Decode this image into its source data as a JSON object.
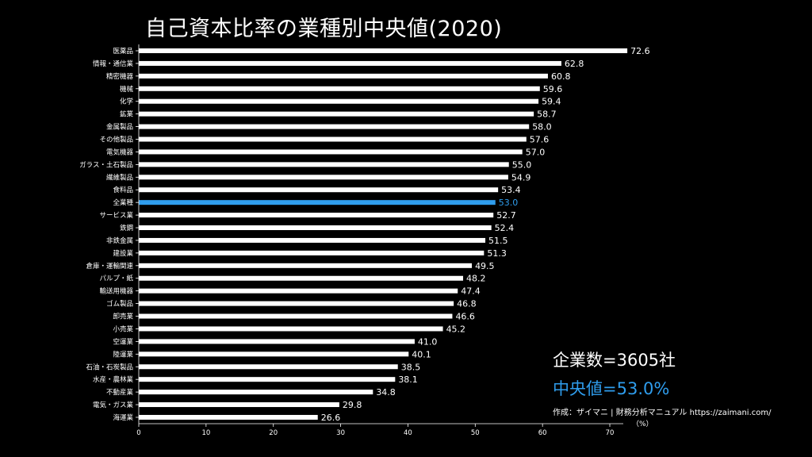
{
  "colors": {
    "background": "#000000",
    "bar": "#ffffff",
    "highlight": "#2f9ded"
  },
  "header": {
    "title": "自己資本比率の業種別中央値(2020)"
  },
  "stats": {
    "company_count": "企業数=3605社",
    "median": "中央値=53.0%"
  },
  "credit": "作成：ザイマニ | 財務分析マニュアル https://zaimani.com/",
  "unit_label": "（%）",
  "chart_data": {
    "type": "bar",
    "orientation": "horizontal",
    "title": "自己資本比率の業種別中央値(2020)",
    "xlim": [
      0,
      72
    ],
    "xticks": [
      0,
      10,
      20,
      30,
      40,
      50,
      60,
      70
    ],
    "highlight_category": "全業種",
    "categories": [
      "医薬品",
      "情報・通信業",
      "精密機器",
      "機械",
      "化学",
      "鉱業",
      "金属製品",
      "その他製品",
      "電気機器",
      "ガラス・土石製品",
      "繊維製品",
      "食料品",
      "全業種",
      "サービス業",
      "鉄鋼",
      "非鉄金属",
      "建設業",
      "倉庫・運輸関連",
      "パルプ・紙",
      "輸送用機器",
      "ゴム製品",
      "卸売業",
      "小売業",
      "空運業",
      "陸運業",
      "石油・石炭製品",
      "水産・農林業",
      "不動産業",
      "電気・ガス業",
      "海運業"
    ],
    "values": [
      72.6,
      62.8,
      60.8,
      59.6,
      59.4,
      58.7,
      58.0,
      57.6,
      57.0,
      55.0,
      54.9,
      53.4,
      53.0,
      52.7,
      52.4,
      51.5,
      51.3,
      49.5,
      48.2,
      47.4,
      46.8,
      46.6,
      45.2,
      41.0,
      40.1,
      38.5,
      38.1,
      34.8,
      29.8,
      26.6
    ],
    "value_labels": [
      "72.6",
      "62.8",
      "60.8",
      "59.6",
      "59.4",
      "58.7",
      "58.0",
      "57.6",
      "57.0",
      "55.0",
      "54.9",
      "53.4",
      "53.0",
      "52.7",
      "52.4",
      "51.5",
      "51.3",
      "49.5",
      "48.2",
      "47.4",
      "46.8",
      "46.6",
      "45.2",
      "41.0",
      "40.1",
      "38.5",
      "38.1",
      "34.8",
      "29.8",
      "26.6"
    ]
  }
}
